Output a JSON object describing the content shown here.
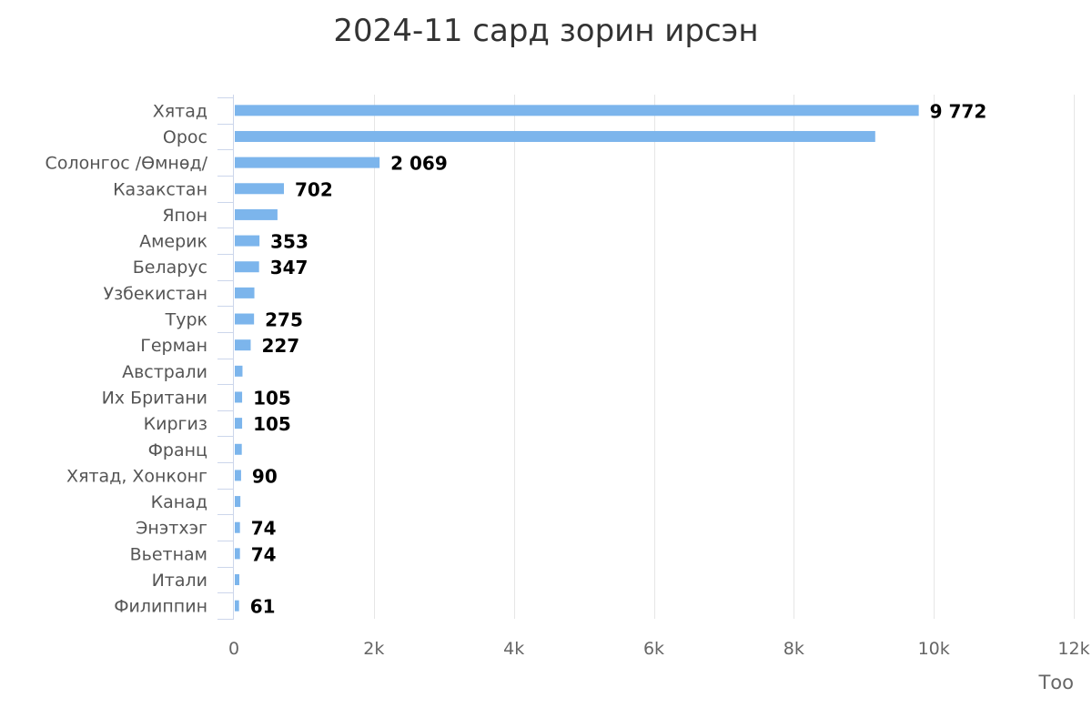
{
  "chart_data": {
    "type": "bar",
    "orientation": "horizontal",
    "title": "2024-11 сард зорин ирсэн",
    "xlabel": "Тоо",
    "ylabel": "",
    "xlim": [
      0,
      12000
    ],
    "xticks": [
      0,
      2000,
      4000,
      6000,
      8000,
      10000,
      12000
    ],
    "xtick_labels": [
      "0",
      "2k",
      "4k",
      "6k",
      "8k",
      "10k",
      "12k"
    ],
    "grid": true,
    "legend": "none",
    "bar_color": "#7cb5ec",
    "categories": [
      "Хятад",
      "Орос",
      "Солонгос /Өмнөд/",
      "Казакстан",
      "Япон",
      "Америк",
      "Беларус",
      "Узбекистан",
      "Турк",
      "Герман",
      "Австрали",
      "Их Британи",
      "Киргиз",
      "Франц",
      "Хятад, Хонконг",
      "Канад",
      "Энэтхэг",
      "Вьетнам",
      "Итали",
      "Филиппин"
    ],
    "values": [
      9772,
      9150,
      2069,
      702,
      610,
      353,
      347,
      280,
      275,
      227,
      110,
      105,
      105,
      100,
      90,
      80,
      74,
      74,
      65,
      61
    ],
    "data_labels": [
      "9 772",
      "",
      "2 069",
      "702",
      "",
      "353",
      "347",
      "",
      "275",
      "227",
      "",
      "105",
      "105",
      "",
      "90",
      "",
      "74",
      "74",
      "",
      "61"
    ]
  }
}
